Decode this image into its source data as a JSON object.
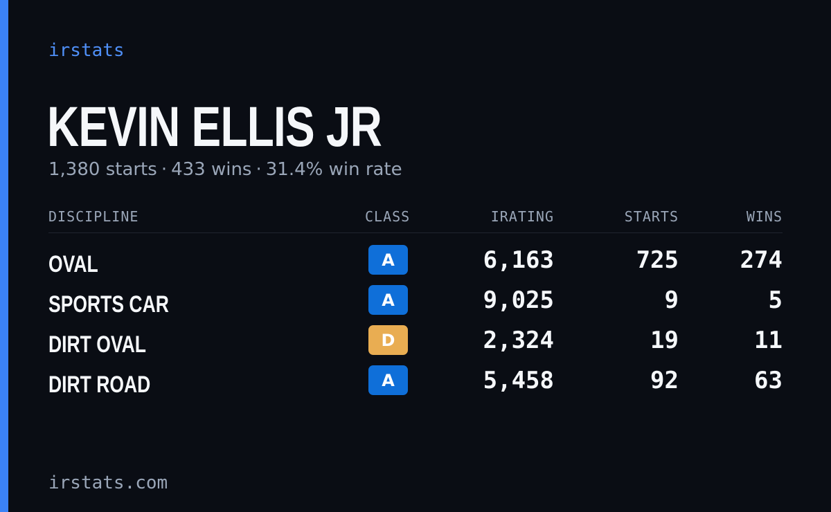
{
  "brand": "irstats",
  "driver": {
    "name": "KEVIN ELLIS JR",
    "starts_text": "1,380 starts",
    "wins_text": "433 wins",
    "win_rate_text": "31.4% win rate",
    "separator": "·"
  },
  "table": {
    "headers": {
      "discipline": "DISCIPLINE",
      "class": "CLASS",
      "irating": "IRATING",
      "starts": "STARTS",
      "wins": "WINS"
    },
    "rows": [
      {
        "discipline": "OVAL",
        "class": "A",
        "irating": "6,163",
        "starts": "725",
        "wins": "274"
      },
      {
        "discipline": "SPORTS CAR",
        "class": "A",
        "irating": "9,025",
        "starts": "9",
        "wins": "5"
      },
      {
        "discipline": "DIRT OVAL",
        "class": "D",
        "irating": "2,324",
        "starts": "19",
        "wins": "11"
      },
      {
        "discipline": "DIRT ROAD",
        "class": "A",
        "irating": "5,458",
        "starts": "92",
        "wins": "63"
      }
    ]
  },
  "colors": {
    "background": "#0a0d14",
    "accent": "#3b82f6",
    "class_a": "#0f6fd9",
    "class_d": "#e9ad52",
    "muted_text": "#9aa6b8"
  },
  "footer": "irstats.com"
}
